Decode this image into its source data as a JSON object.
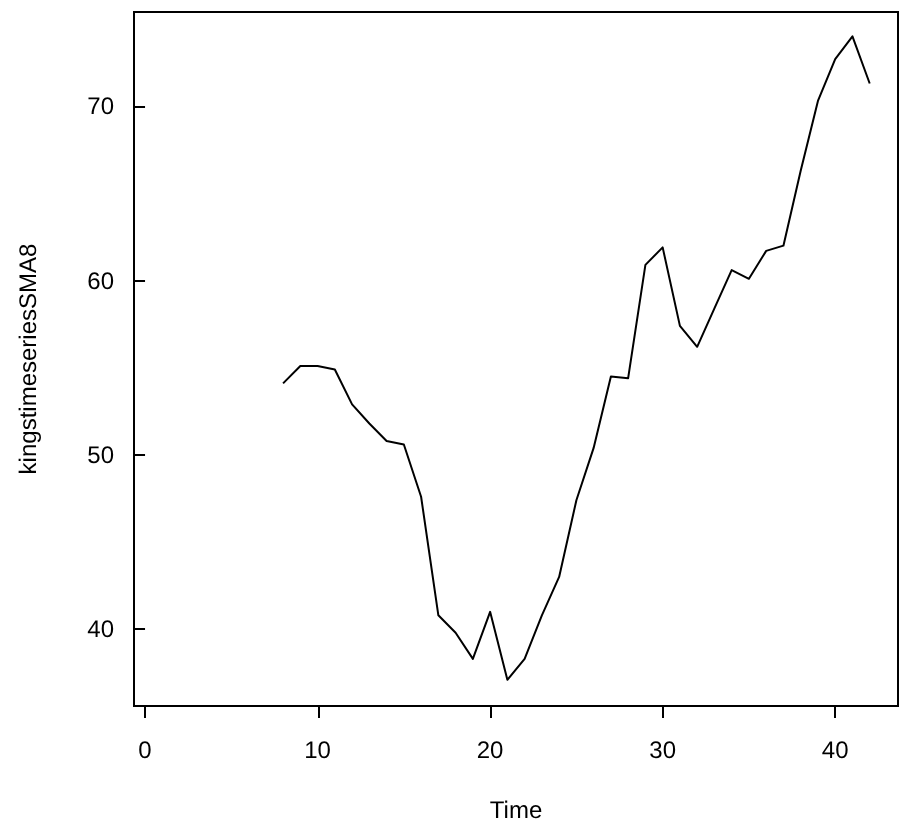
{
  "chart_data": {
    "type": "line",
    "xlabel": "Time",
    "ylabel": "kingstimeseriesSMA8",
    "x": [
      8,
      9,
      10,
      11,
      12,
      13,
      14,
      15,
      16,
      17,
      18,
      19,
      20,
      21,
      22,
      23,
      24,
      25,
      26,
      27,
      28,
      29,
      30,
      31,
      32,
      33,
      34,
      35,
      36,
      37,
      38,
      39,
      40,
      41,
      42
    ],
    "series": [
      {
        "color": "#000000",
        "values": [
          54.1,
          55.1,
          55.1,
          54.9,
          52.9,
          51.8,
          50.8,
          50.6,
          47.6,
          40.8,
          39.8,
          38.3,
          41.0,
          37.1,
          38.3,
          40.8,
          43.0,
          47.4,
          50.4,
          54.5,
          54.4,
          60.9,
          61.9,
          57.4,
          56.2,
          58.4,
          60.6,
          60.1,
          61.7,
          62.0,
          66.3,
          70.3,
          72.7,
          74.0,
          71.3
        ]
      }
    ],
    "xlim": [
      -0.64,
      43.64
    ],
    "ylim": [
      35.6,
      75.4
    ],
    "xticks": [
      0,
      10,
      20,
      30,
      40
    ],
    "yticks": [
      40,
      50,
      60,
      70
    ],
    "grid": false,
    "marker": "none",
    "line_style": "solid"
  }
}
